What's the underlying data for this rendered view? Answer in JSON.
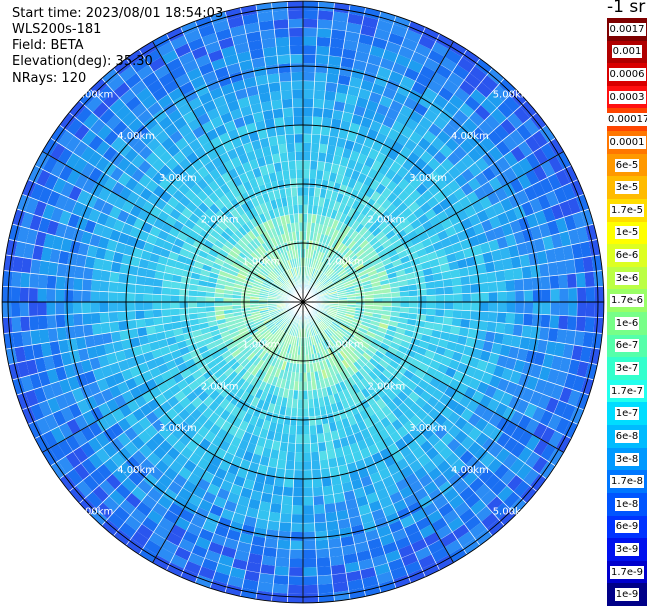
{
  "info": {
    "start_time": "Start time: 2023/08/01 18:54:03",
    "instrument": "WLS200s-181",
    "field": "Field: BETA",
    "elevation": "Elevation(deg): 35.30",
    "nrays": "NRays: 120"
  },
  "colorbar": {
    "title": "-1 sr",
    "labels": [
      "0.0017",
      "0.001",
      "0.0006",
      "0.0003",
      "0.00017",
      "0.0001",
      "6e-5",
      "3e-5",
      "1.7e-5",
      "1e-5",
      "6e-6",
      "3e-6",
      "1.7e-6",
      "1e-6",
      "6e-7",
      "3e-7",
      "1.7e-7",
      "1e-7",
      "6e-8",
      "3e-8",
      "1.7e-8",
      "1e-8",
      "6e-9",
      "3e-9",
      "1.7e-9",
      "1e-9"
    ],
    "colors": [
      "#7f0000",
      "#b00000",
      "#d80000",
      "#ff1010",
      "#ff4500",
      "#ff7700",
      "#ff9900",
      "#ffbb00",
      "#ffdd00",
      "#ffff00",
      "#ddff22",
      "#bbff44",
      "#99ff66",
      "#77ff88",
      "#55ffaa",
      "#33ffcc",
      "#22ffee",
      "#00ddff",
      "#00bbff",
      "#0099ff",
      "#0077ff",
      "#0055ff",
      "#0033ff",
      "#0011ee",
      "#0000cc",
      "#000088"
    ]
  },
  "ring_labels": [
    "1.00km",
    "2.00km",
    "3.00km",
    "4.00km",
    "5.00km"
  ],
  "chart_data": {
    "type": "ppi",
    "nrays": 120,
    "ranges_km": [
      1,
      2,
      3,
      4,
      5
    ]
  }
}
